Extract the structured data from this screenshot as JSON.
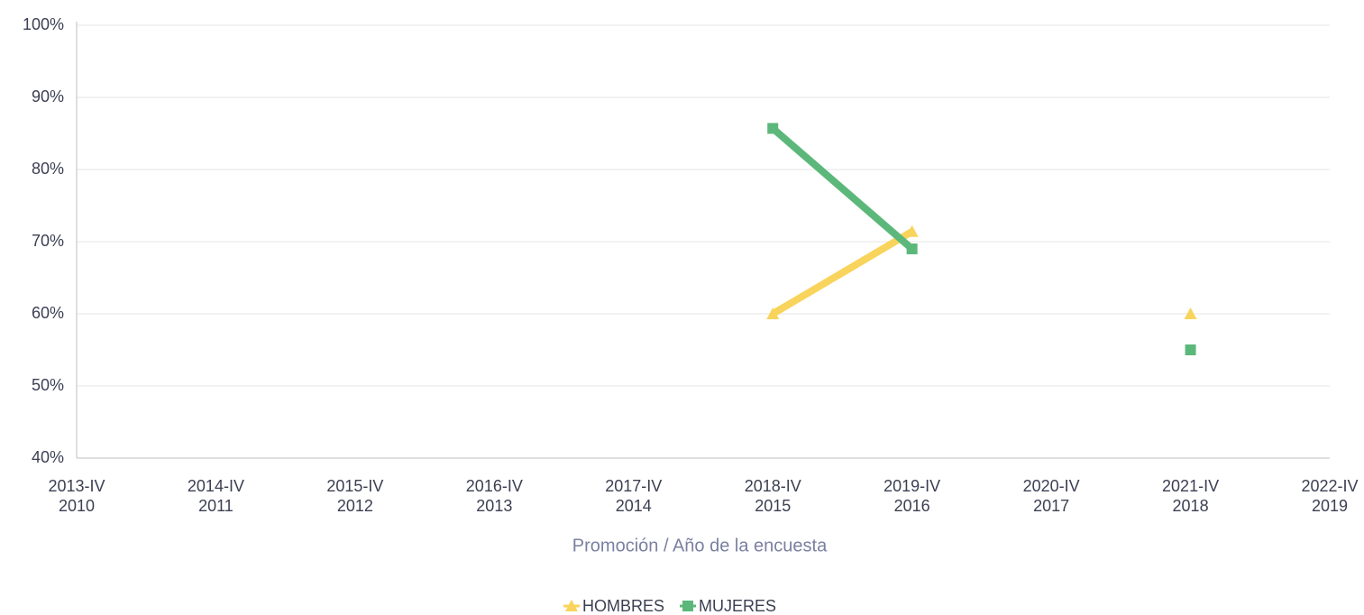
{
  "chart_data": {
    "type": "line",
    "x_label": "Promoción / Año de la encuesta",
    "categories": [
      [
        "2013-IV",
        "2010"
      ],
      [
        "2014-IV",
        "2011"
      ],
      [
        "2015-IV",
        "2012"
      ],
      [
        "2016-IV",
        "2013"
      ],
      [
        "2017-IV",
        "2014"
      ],
      [
        "2018-IV",
        "2015"
      ],
      [
        "2019-IV",
        "2016"
      ],
      [
        "2020-IV",
        "2017"
      ],
      [
        "2021-IV",
        "2018"
      ],
      [
        "2022-IV",
        "2019"
      ]
    ],
    "series": [
      {
        "name": "HOMBRES",
        "color": "#f9d45c",
        "marker": "triangle",
        "values": [
          null,
          null,
          null,
          null,
          null,
          60,
          71.4,
          null,
          60,
          null
        ]
      },
      {
        "name": "MUJERES",
        "color": "#5cb87a",
        "marker": "square",
        "values": [
          null,
          null,
          null,
          null,
          null,
          85.7,
          69,
          null,
          55,
          null
        ]
      }
    ],
    "ylim": [
      40,
      100
    ],
    "yticks": [
      {
        "value": 40,
        "label": "40%"
      },
      {
        "value": 50,
        "label": "50%"
      },
      {
        "value": 60,
        "label": "60%"
      },
      {
        "value": 70,
        "label": "70%"
      },
      {
        "value": 80,
        "label": "80%"
      },
      {
        "value": 90,
        "label": "90%"
      },
      {
        "value": 100,
        "label": "100%"
      }
    ],
    "grid": true,
    "legend": "bottom"
  }
}
